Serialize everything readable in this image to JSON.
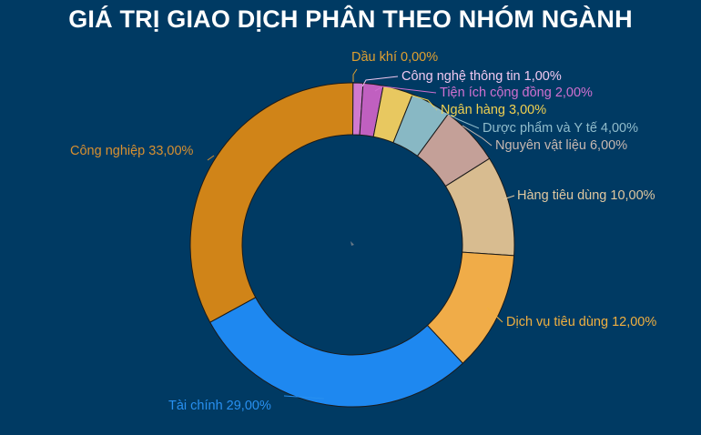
{
  "chart_data": {
    "type": "pie",
    "title": "GIÁ TRỊ GIAO DỊCH PHÂN THEO NHÓM NGÀNH",
    "donut": true,
    "legend": "none",
    "slices": [
      {
        "label": "Dầu khí 0,00%",
        "value": 0.0,
        "color": "#e8a0c8",
        "label_color": "#e0a030"
      },
      {
        "label": "Công nghệ thông tin 1,00%",
        "value": 1.0,
        "color": "#d07ad0",
        "label_color": "#f0c8f0"
      },
      {
        "label": "Tiện ích cộng đồng 2,00%",
        "value": 2.0,
        "color": "#c060c0",
        "label_color": "#d070d0"
      },
      {
        "label": "Ngân hàng 3,00%",
        "value": 3.0,
        "color": "#e8c860",
        "label_color": "#f0d050"
      },
      {
        "label": "Dược phẩm và Y tế 4,00%",
        "value": 4.0,
        "color": "#88b8c4",
        "label_color": "#90bccb"
      },
      {
        "label": "Nguyên vật liệu 6,00%",
        "value": 6.0,
        "color": "#c4a098",
        "label_color": "#c8b8b0"
      },
      {
        "label": "Hàng tiêu dùng 10,00%",
        "value": 10.0,
        "color": "#d8bc90",
        "label_color": "#e0c8a0"
      },
      {
        "label": "Dịch vụ tiêu dùng 12,00%",
        "value": 12.0,
        "color": "#f0ac48",
        "label_color": "#f0b040"
      },
      {
        "label": "Tài chính 29,00%",
        "value": 29.0,
        "color": "#1e88f0",
        "label_color": "#2890f0"
      },
      {
        "label": "Công nghiệp 33,00%",
        "value": 33.0,
        "color": "#d08418",
        "label_color": "#d89030"
      }
    ]
  }
}
